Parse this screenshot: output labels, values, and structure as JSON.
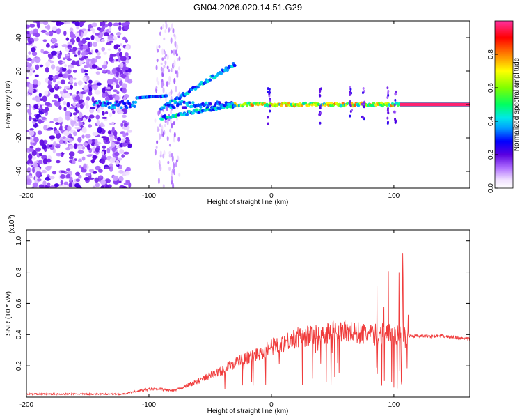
{
  "title": "GN04.2026.020.14.51.G29",
  "chart_data": [
    {
      "type": "heatmap",
      "title": "GN04.2026.020.14.51.G29",
      "xlabel": "Height of straight line (km)",
      "ylabel": "Frequency (Hz)",
      "xlim": [
        -200,
        162
      ],
      "ylim": [
        -50,
        50
      ],
      "x_ticks": [
        -200,
        -100,
        0,
        100
      ],
      "y_ticks": [
        -40,
        -20,
        0,
        20,
        40
      ],
      "colorbar": {
        "label": "Normalized spectral amplitude",
        "range": [
          0,
          1
        ],
        "ticks": [
          0.0,
          0.2,
          0.4,
          0.6,
          0.8
        ],
        "tick_labels": [
          "0.0",
          "0.2",
          "0.4",
          "0.6",
          "0.8"
        ]
      },
      "features": {
        "noise_region_x": [
          -200,
          -115
        ],
        "second_noise_region_x": [
          -95,
          -75
        ],
        "steady_tone_x": [
          105,
          162
        ],
        "steady_tone_freq": 0
      }
    },
    {
      "type": "line",
      "xlabel": "Height of straight line (km)",
      "ylabel": "SNR (10 * v/v)",
      "y_scale_label": "(x10",
      "y_scale_exp": "4",
      "xlim": [
        -200,
        162
      ],
      "ylim": [
        0,
        1.07
      ],
      "x_ticks": [
        -200,
        -100,
        0,
        100
      ],
      "y_ticks": [
        0.2,
        0.4,
        0.6,
        0.8,
        1.0
      ],
      "y_tick_labels": [
        "0.2",
        "0.4",
        "0.6",
        "0.8",
        "1.0"
      ],
      "color": "#f03c3c",
      "envelope": {
        "x": [
          -200,
          -120,
          -115,
          -100,
          -90,
          -80,
          -70,
          -60,
          -50,
          -40,
          -30,
          -20,
          -10,
          0,
          10,
          20,
          30,
          40,
          50,
          60,
          70,
          80,
          90,
          100,
          105,
          110,
          112,
          120,
          140,
          162
        ],
        "y": [
          0.02,
          0.02,
          0.03,
          0.05,
          0.05,
          0.04,
          0.07,
          0.1,
          0.14,
          0.17,
          0.22,
          0.25,
          0.28,
          0.32,
          0.35,
          0.38,
          0.39,
          0.4,
          0.42,
          0.42,
          0.41,
          0.4,
          0.4,
          0.4,
          0.4,
          0.38,
          0.39,
          0.39,
          0.39,
          0.37
        ]
      }
    }
  ]
}
